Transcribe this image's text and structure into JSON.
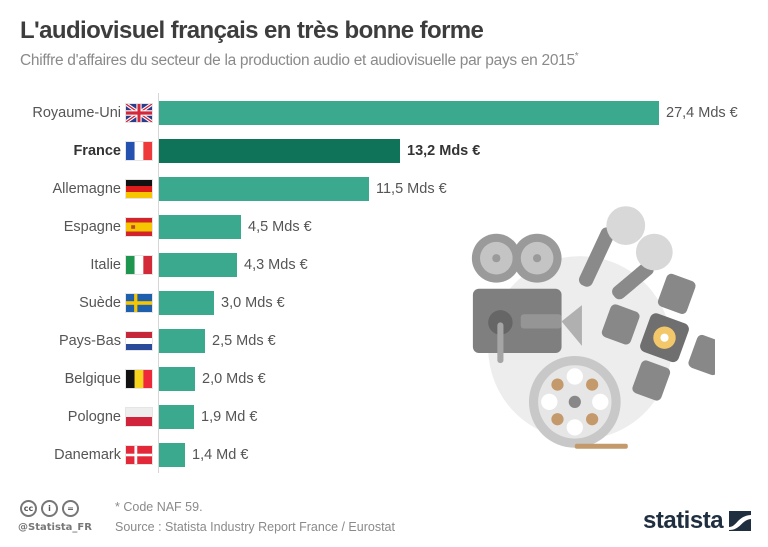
{
  "header": {
    "title": "L'audiovisuel français en très bonne forme",
    "subtitle": "Chiffre d'affaires du secteur de la production audio et audiovisuelle par pays en 2015",
    "subtitle_mark": "*"
  },
  "colors": {
    "bar": "#3aa98d",
    "highlight_bar": "#0e7358"
  },
  "rows": [
    {
      "country": "Royaume-Uni",
      "value_label": "27,4 Mds €",
      "flag": "uk-flag-icon",
      "highlight": false
    },
    {
      "country": "France",
      "value_label": "13,2 Mds €",
      "flag": "france-flag-icon",
      "highlight": true
    },
    {
      "country": "Allemagne",
      "value_label": "11,5 Mds €",
      "flag": "germany-flag-icon",
      "highlight": false
    },
    {
      "country": "Espagne",
      "value_label": "4,5 Mds €",
      "flag": "spain-flag-icon",
      "highlight": false
    },
    {
      "country": "Italie",
      "value_label": "4,3 Mds €",
      "flag": "italy-flag-icon",
      "highlight": false
    },
    {
      "country": "Suède",
      "value_label": "3,0 Mds €",
      "flag": "sweden-flag-icon",
      "highlight": false
    },
    {
      "country": "Pays-Bas",
      "value_label": "2,5 Mds €",
      "flag": "netherlands-flag-icon",
      "highlight": false
    },
    {
      "country": "Belgique",
      "value_label": "2,0 Mds €",
      "flag": "belgium-flag-icon",
      "highlight": false
    },
    {
      "country": "Pologne",
      "value_label": "1,9 Md €",
      "flag": "poland-flag-icon",
      "highlight": false
    },
    {
      "country": "Danemark",
      "value_label": "1,4 Md €",
      "flag": "denmark-flag-icon",
      "highlight": false
    }
  ],
  "footer": {
    "note": "* Code NAF 59.",
    "source": "Source : Statista Industry Report France / Eurostat",
    "handle": "@Statista_FR",
    "cc_icons": [
      "cc",
      "by",
      "nd"
    ],
    "logo": "statista"
  },
  "chart_data": {
    "type": "bar",
    "orientation": "horizontal",
    "title": "L'audiovisuel français en très bonne forme",
    "subtitle": "Chiffre d'affaires du secteur de la production audio et audiovisuelle par pays en 2015*",
    "categories": [
      "Royaume-Uni",
      "France",
      "Allemagne",
      "Espagne",
      "Italie",
      "Suède",
      "Pays-Bas",
      "Belgique",
      "Pologne",
      "Danemark"
    ],
    "values": [
      27.4,
      13.2,
      11.5,
      4.5,
      4.3,
      3.0,
      2.5,
      2.0,
      1.9,
      1.4
    ],
    "unit": "Mds €",
    "value_labels": [
      "27,4 Mds €",
      "13,2 Mds €",
      "11,5 Mds €",
      "4,5 Mds €",
      "4,3 Mds €",
      "3,0 Mds €",
      "2,5 Mds €",
      "2,0 Mds €",
      "1,9 Md €",
      "1,4 Md €"
    ],
    "highlighted_category": "France",
    "xlabel": "",
    "ylabel": "",
    "grid": false,
    "legend": "none",
    "annotations": [
      "* Code NAF 59.",
      "Source : Statista Industry Report France / Eurostat"
    ]
  }
}
